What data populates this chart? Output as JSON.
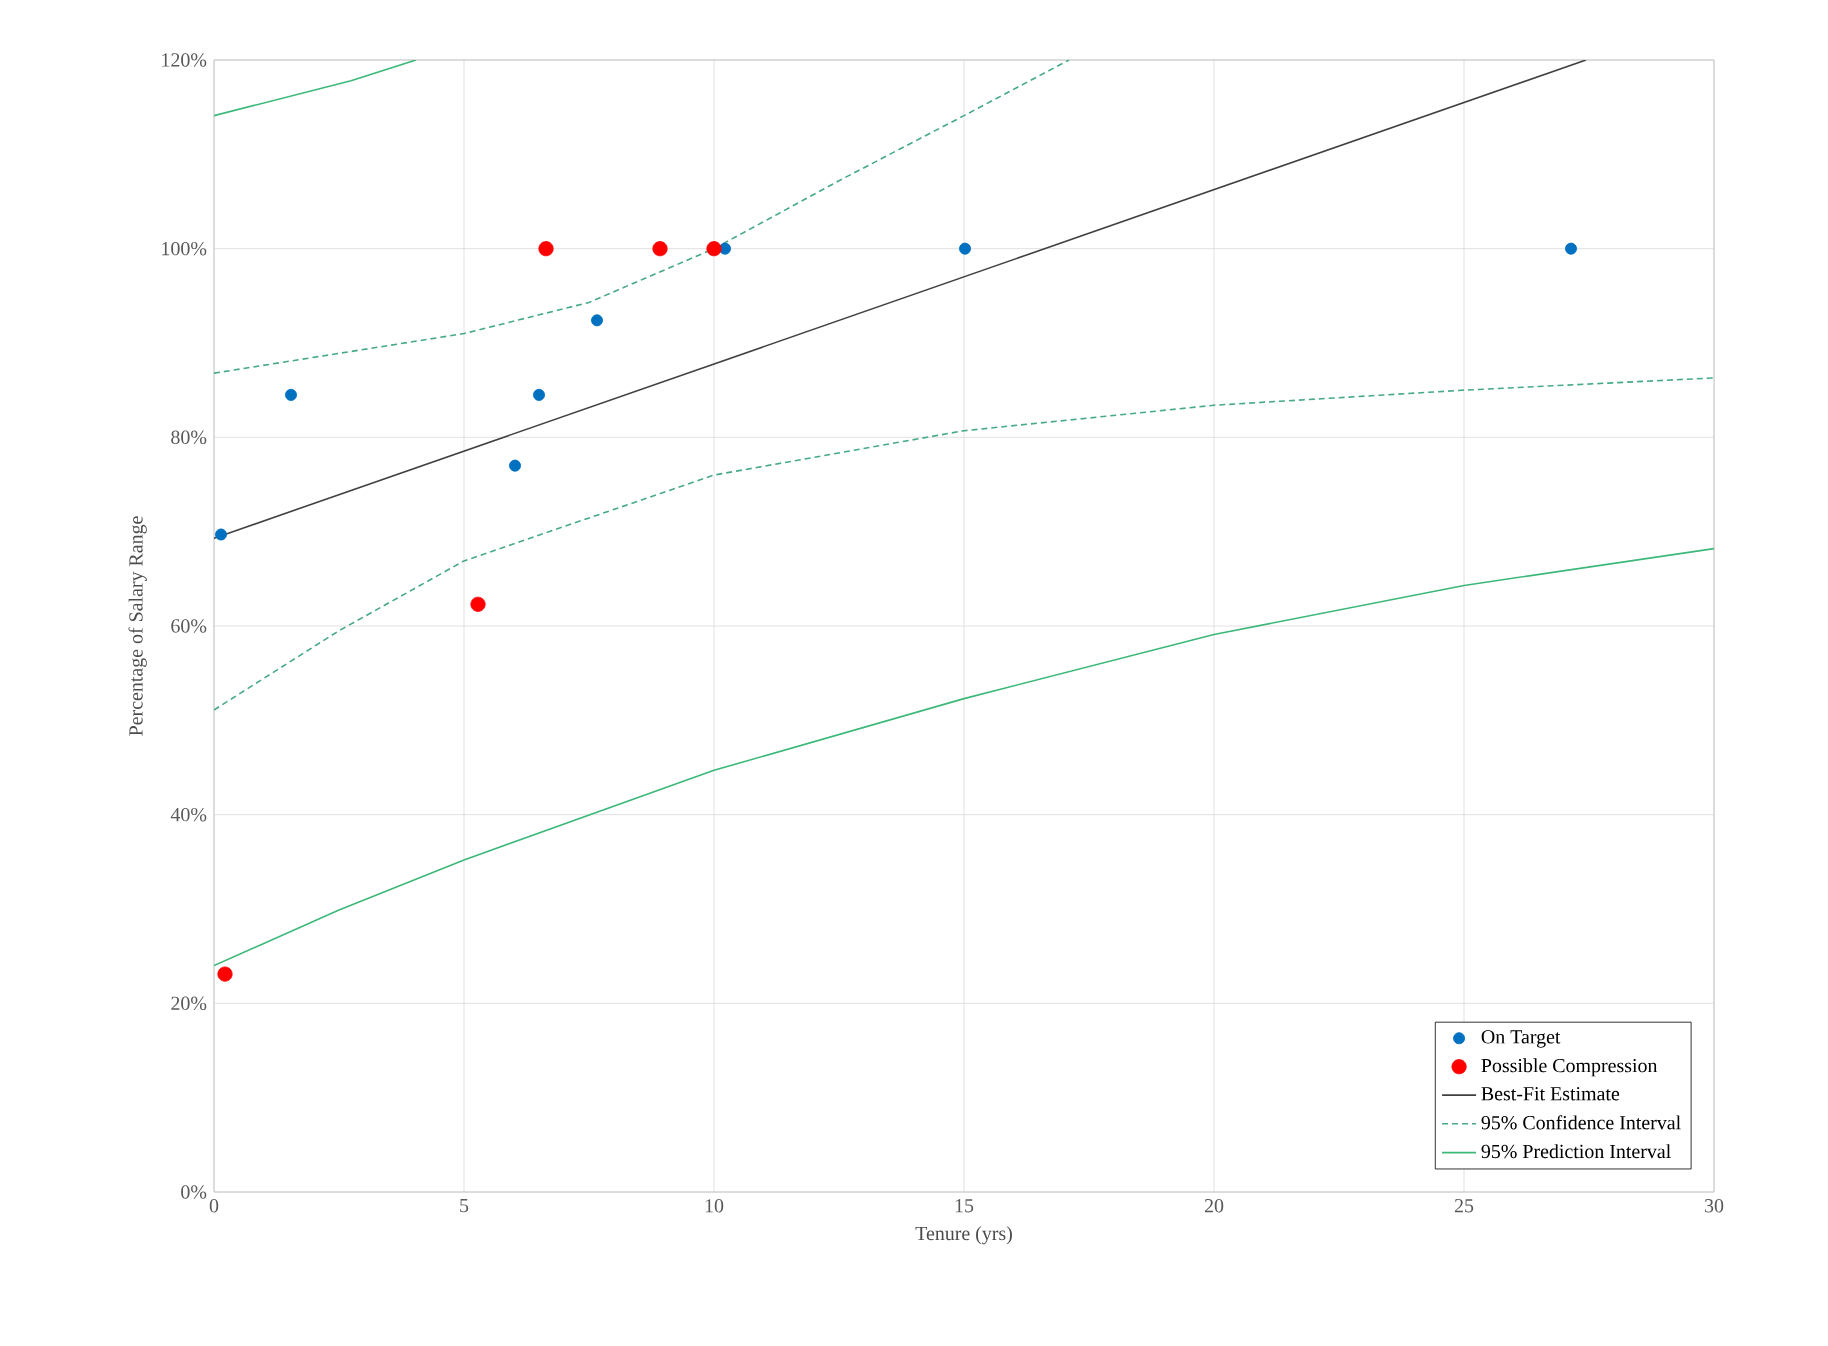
{
  "chart_data": {
    "type": "scatter",
    "xlabel": "Tenure (yrs)",
    "ylabel": "Percentage of Salary Range",
    "xlim": [
      0,
      30
    ],
    "ylim": [
      0,
      120
    ],
    "xticks": [
      0,
      5,
      10,
      15,
      20,
      25,
      30
    ],
    "yticks": [
      {
        "value": 0,
        "label": "0%"
      },
      {
        "value": 20,
        "label": "20%"
      },
      {
        "value": 40,
        "label": "40%"
      },
      {
        "value": 60,
        "label": "60%"
      },
      {
        "value": 80,
        "label": "80%"
      },
      {
        "value": 100,
        "label": "100%"
      },
      {
        "value": 120,
        "label": "120%"
      }
    ],
    "grid": true,
    "legend": "bottom right",
    "marker": "circle",
    "series": [
      {
        "name": "On Target",
        "color": "#0070c0",
        "x": [
          0.14,
          1.54,
          6.02,
          6.5,
          7.66,
          10.22,
          15.02,
          27.14
        ],
        "values": [
          69.7,
          84.5,
          77.0,
          84.5,
          92.4,
          100,
          100,
          100
        ]
      },
      {
        "name": "Possible Compression",
        "color": "#ff0000",
        "x": [
          0.22,
          5.28,
          6.64,
          8.92,
          10.0
        ],
        "values": [
          23.1,
          62.3,
          100,
          100,
          100
        ]
      },
      {
        "name": "Best-Fit Estimate",
        "type": "line",
        "marker": "none",
        "line_style": "solid",
        "color": "#404040",
        "x": [
          0,
          27.44
        ],
        "values": [
          69.3,
          120
        ]
      },
      {
        "name": "95% Confidence Interval",
        "type": "line",
        "marker": "none",
        "line_style": "dashed",
        "color": "#45a98a",
        "x": [
          0,
          5,
          7.5,
          10,
          12.5,
          15,
          17.1
        ],
        "values": [
          86.8,
          91.0,
          94.3,
          100,
          107.2,
          114.1,
          120
        ]
      },
      {
        "type": "line",
        "marker": "none",
        "line_style": "dashed",
        "color": "#45a98a",
        "x": [
          0,
          2.5,
          5,
          10,
          15,
          20,
          25,
          30
        ],
        "values": [
          51.1,
          59.5,
          66.9,
          76.0,
          80.7,
          83.4,
          85.0,
          86.3
        ]
      },
      {
        "name": "95% Prediction Interval",
        "type": "line",
        "marker": "none",
        "line_style": "solid",
        "color": "#3cb878",
        "x": [
          0,
          2.74,
          4.04
        ],
        "values": [
          114.1,
          117.8,
          120
        ]
      },
      {
        "type": "line",
        "marker": "none",
        "line_style": "solid",
        "color": "#3cb878",
        "x": [
          0,
          2.5,
          5,
          10,
          15,
          20,
          25,
          30
        ],
        "values": [
          24.0,
          29.9,
          35.2,
          44.7,
          52.3,
          59.1,
          64.3,
          68.2
        ]
      }
    ]
  }
}
